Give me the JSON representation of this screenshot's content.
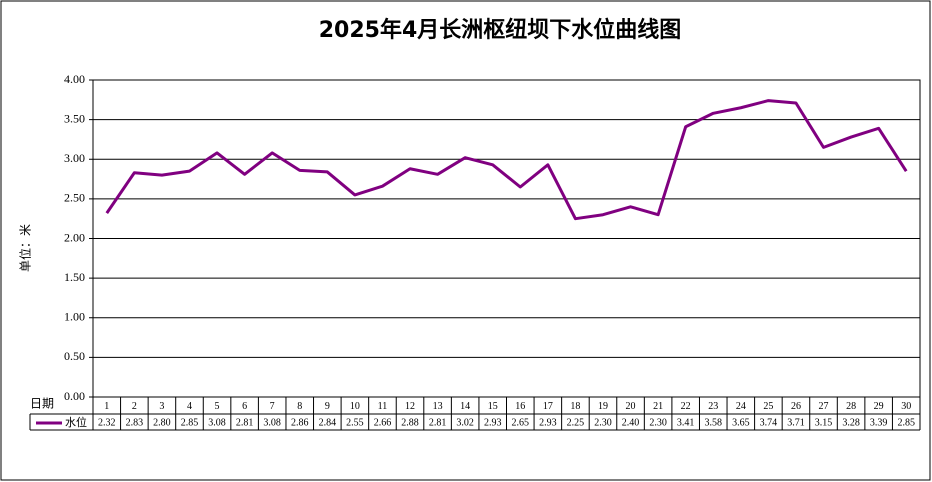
{
  "chart_data": {
    "type": "line",
    "title": "2025年4月长洲枢纽坝下水位曲线图",
    "y_label": "单位：米",
    "x_label": "日期",
    "categories": [
      "1",
      "2",
      "3",
      "4",
      "5",
      "6",
      "7",
      "8",
      "9",
      "10",
      "11",
      "12",
      "13",
      "14",
      "15",
      "16",
      "17",
      "18",
      "19",
      "20",
      "21",
      "22",
      "23",
      "24",
      "25",
      "26",
      "27",
      "28",
      "29",
      "30"
    ],
    "series": [
      {
        "name": "水位",
        "color": "#800080",
        "values": [
          2.32,
          2.83,
          2.8,
          2.85,
          3.08,
          2.81,
          3.08,
          2.86,
          2.84,
          2.55,
          2.66,
          2.88,
          2.81,
          3.02,
          2.93,
          2.65,
          2.93,
          2.25,
          2.3,
          2.4,
          2.3,
          3.41,
          3.58,
          3.65,
          3.74,
          3.71,
          3.15,
          3.28,
          3.39,
          2.85
        ],
        "value_labels": [
          "2.32",
          "2.83",
          "2.80",
          "2.85",
          "3.08",
          "2.81",
          "3.08",
          "2.86",
          "2.84",
          "2.55",
          "2.66",
          "2.88",
          "2.81",
          "3.02",
          "2.93",
          "2.65",
          "2.93",
          "2.25",
          "2.30",
          "2.40",
          "2.30",
          "3.41",
          "3.58",
          "3.65",
          "3.74",
          "3.71",
          "3.15",
          "3.28",
          "3.39",
          "2.85"
        ]
      }
    ],
    "ylim": [
      0,
      4
    ],
    "yticks": [
      {
        "value": 0,
        "label": "0.00"
      },
      {
        "value": 0.5,
        "label": "0.50"
      },
      {
        "value": 1,
        "label": "1.00"
      },
      {
        "value": 1.5,
        "label": "1.50"
      },
      {
        "value": 2,
        "label": "2.00"
      },
      {
        "value": 2.5,
        "label": "2.50"
      },
      {
        "value": 3,
        "label": "3.00"
      },
      {
        "value": 3.5,
        "label": "3.50"
      },
      {
        "value": 4,
        "label": "4.00"
      }
    ],
    "grid": true
  }
}
